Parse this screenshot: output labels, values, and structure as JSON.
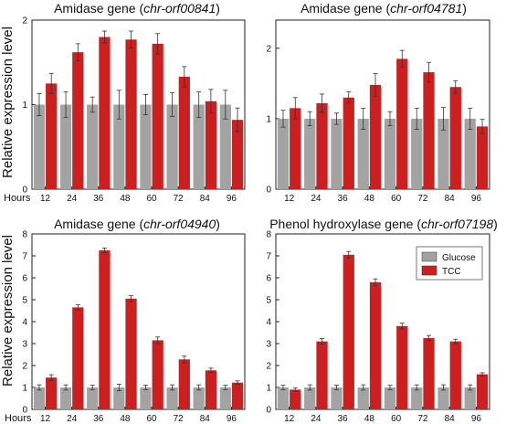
{
  "figure": {
    "ylabel": "Relative expression level",
    "hours_label": "Hours"
  },
  "colors": {
    "glucose": "#a3a3a3",
    "tcc": "#cc1f1f",
    "axis": "#222222"
  },
  "chart_data": [
    {
      "type": "bar",
      "title_prefix": "Amidase gene (",
      "title_italic": "chr-orf00841",
      "title_suffix": ")",
      "categories": [
        "12",
        "24",
        "36",
        "48",
        "60",
        "72",
        "84",
        "96"
      ],
      "ylim": [
        0,
        2
      ],
      "yticks": [
        "0",
        "1",
        "2"
      ],
      "series": [
        {
          "name": "Glucose",
          "values": [
            1,
            1,
            1,
            1,
            1,
            1,
            1,
            1
          ],
          "errors": [
            0.13,
            0.15,
            0.09,
            0.17,
            0.12,
            0.14,
            0.15,
            0.17
          ]
        },
        {
          "name": "TCC",
          "values": [
            1.25,
            1.62,
            1.8,
            1.77,
            1.72,
            1.33,
            1.04,
            0.82
          ],
          "errors": [
            0.12,
            0.1,
            0.07,
            0.1,
            0.12,
            0.12,
            0.14,
            0.14
          ]
        }
      ]
    },
    {
      "type": "bar",
      "title_prefix": "Amidase gene (",
      "title_italic": "chr-orf04781",
      "title_suffix": ")",
      "categories": [
        "12",
        "24",
        "36",
        "48",
        "60",
        "72",
        "84",
        "96"
      ],
      "ylim": [
        0,
        2.4
      ],
      "yticks": [
        "0",
        "1",
        "2"
      ],
      "series": [
        {
          "name": "Glucose",
          "values": [
            1,
            1,
            1,
            1,
            1,
            1,
            1,
            1
          ],
          "errors": [
            0.12,
            0.1,
            0.08,
            0.15,
            0.1,
            0.15,
            0.16,
            0.15
          ]
        },
        {
          "name": "TCC",
          "values": [
            1.15,
            1.22,
            1.3,
            1.48,
            1.85,
            1.66,
            1.45,
            0.89
          ],
          "errors": [
            0.15,
            0.13,
            0.08,
            0.16,
            0.12,
            0.14,
            0.09,
            0.1
          ]
        }
      ]
    },
    {
      "type": "bar",
      "title_prefix": "Amidase gene (",
      "title_italic": "chr-orf04940",
      "title_suffix": ")",
      "categories": [
        "12",
        "24",
        "36",
        "48",
        "60",
        "72",
        "84",
        "96"
      ],
      "ylim": [
        0,
        8
      ],
      "yticks": [
        "0",
        "1",
        "2",
        "3",
        "4",
        "5",
        "6",
        "7",
        "8"
      ],
      "series": [
        {
          "name": "Glucose",
          "values": [
            1,
            1,
            1,
            1,
            1,
            1,
            1,
            1
          ],
          "errors": [
            0.12,
            0.12,
            0.1,
            0.15,
            0.1,
            0.12,
            0.12,
            0.1
          ]
        },
        {
          "name": "TCC",
          "values": [
            1.45,
            4.65,
            7.25,
            5.05,
            3.15,
            2.28,
            1.78,
            1.22
          ],
          "errors": [
            0.13,
            0.12,
            0.1,
            0.13,
            0.15,
            0.15,
            0.1,
            0.08
          ]
        }
      ]
    },
    {
      "type": "bar",
      "title_prefix": "Phenol hydroxylase gene (",
      "title_italic": "chr-orf07198",
      "title_suffix": ")",
      "categories": [
        "12",
        "24",
        "36",
        "48",
        "60",
        "72",
        "84",
        "96"
      ],
      "ylim": [
        0,
        8
      ],
      "yticks": [
        "0",
        "1",
        "2",
        "3",
        "4",
        "5",
        "6",
        "7",
        "8"
      ],
      "legend": {
        "position": "top-right",
        "items": [
          "Glucose",
          "TCC"
        ]
      },
      "series": [
        {
          "name": "Glucose",
          "values": [
            1,
            1,
            1,
            1,
            1,
            1,
            1,
            1
          ],
          "errors": [
            0.1,
            0.12,
            0.1,
            0.12,
            0.1,
            0.12,
            0.12,
            0.12
          ]
        },
        {
          "name": "TCC",
          "values": [
            0.9,
            3.1,
            7.05,
            5.8,
            3.8,
            3.25,
            3.1,
            1.6
          ],
          "errors": [
            0.08,
            0.13,
            0.15,
            0.15,
            0.13,
            0.12,
            0.1,
            0.07
          ]
        }
      ]
    }
  ]
}
